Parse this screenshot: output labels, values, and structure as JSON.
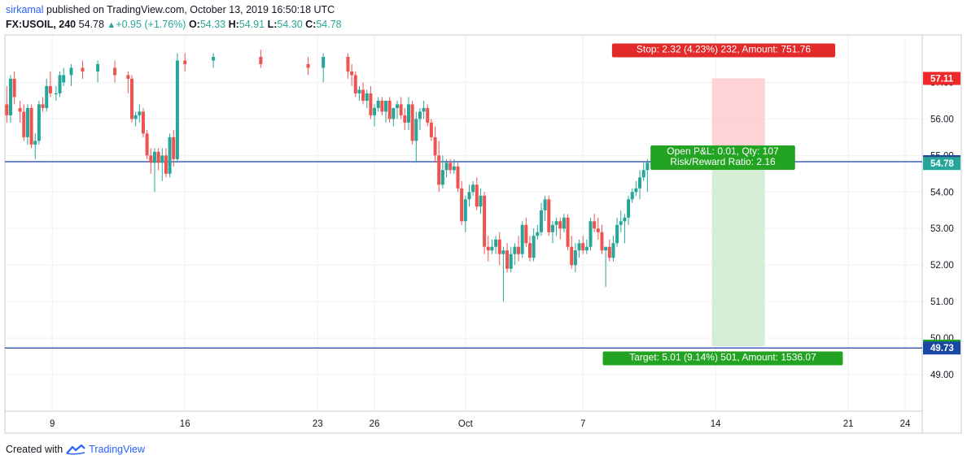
{
  "header": {
    "author": "sirkamal",
    "published_text": "published on TradingView.com, October 13, 2019 16:50:18 UTC",
    "symbol": "FX:USOIL, 240",
    "last": "54.78",
    "change": "+0.95 (+1.76%)",
    "o_label": "O:",
    "o_value": "54.33",
    "h_label": "H:",
    "h_value": "54.91",
    "l_label": "L:",
    "l_value": "54.30",
    "c_label": "C:",
    "c_value": "54.78"
  },
  "footer": {
    "created_with": "Created with",
    "brand": "TradingView"
  },
  "chart_data": {
    "type": "candlestick",
    "ylim": [
      48.0,
      58.3
    ],
    "y_ticks": [
      49,
      50,
      51,
      52,
      53,
      54,
      55,
      56,
      57
    ],
    "y_tick_labels": [
      "49.00",
      "50.00",
      "51.00",
      "52.00",
      "53.00",
      "54.00",
      "55.00",
      "56.00",
      "57.00"
    ],
    "x_ticks": [
      {
        "label": "9",
        "day": 9
      },
      {
        "label": "16",
        "day": 16
      },
      {
        "label": "23",
        "day": 23
      },
      {
        "label": "26",
        "day": 26
      },
      {
        "label": "Oct",
        "day": 30.8
      },
      {
        "label": "7",
        "day": 37
      },
      {
        "label": "14",
        "day": 44
      },
      {
        "label": "21",
        "day": 51
      },
      {
        "label": "24",
        "day": 54
      }
    ],
    "xlim": [
      6.5,
      54.9
    ],
    "horizontal_lines": [
      54.83,
      49.73
    ],
    "price_labels": [
      {
        "value": "57.11",
        "price": 57.11,
        "color": "#ef2929"
      },
      {
        "value": "54.83",
        "price": 54.83,
        "color": "#1948a3"
      },
      {
        "value": "54.79",
        "price": 54.79,
        "color": "#4a4a4a"
      },
      {
        "value": "54.78",
        "price": 54.78,
        "color": "#26a69a"
      },
      {
        "value": "49.78",
        "price": 49.78,
        "color": "#22a322"
      },
      {
        "value": "49.73",
        "price": 49.73,
        "color": "#1948a3"
      }
    ],
    "position": {
      "entry": 54.79,
      "stop": 57.11,
      "target": 49.78,
      "start_day": 43.8,
      "end_day": 46.6,
      "stop_label": "Stop: 2.32 (4.23%) 232, Amount: 751.76",
      "open_pl_label": "Open P&L: 0.01, Qty: 107",
      "rr_label": "Risk/Reward Ratio: 2.16",
      "target_label": "Target: 5.01 (9.14%) 501, Amount: 1536.07"
    },
    "candles": [
      [
        6.6,
        56.4,
        56.9,
        55.9,
        56.1
      ],
      [
        6.8,
        56.1,
        57.2,
        55.9,
        57.1
      ],
      [
        7.0,
        57.1,
        57.3,
        56.4,
        56.6
      ],
      [
        7.3,
        56.3,
        56.5,
        55.9,
        56.2
      ],
      [
        7.5,
        56.2,
        56.4,
        55.4,
        55.5
      ],
      [
        7.7,
        55.5,
        56.4,
        55.3,
        56.3
      ],
      [
        7.9,
        56.3,
        56.4,
        55.2,
        55.3
      ],
      [
        8.1,
        55.3,
        55.6,
        54.9,
        55.4
      ],
      [
        8.3,
        55.4,
        56.5,
        55.3,
        56.4
      ],
      [
        8.5,
        56.4,
        56.6,
        56.2,
        56.3
      ],
      [
        8.7,
        56.3,
        57.1,
        56.2,
        56.9
      ],
      [
        8.9,
        56.9,
        57.3,
        56.6,
        56.7
      ],
      [
        9.2,
        56.7,
        56.9,
        56.5,
        56.7
      ],
      [
        9.4,
        56.7,
        57.3,
        56.6,
        57.2
      ],
      [
        9.6,
        57.0,
        57.4,
        56.9,
        57.2
      ],
      [
        10.0,
        57.2,
        57.5,
        56.9,
        57.4
      ],
      [
        10.6,
        57.4,
        57.6,
        57.1,
        57.3
      ],
      [
        11.4,
        57.3,
        57.6,
        57.0,
        57.5
      ],
      [
        12.3,
        57.4,
        57.6,
        57.0,
        57.2
      ],
      [
        13.0,
        57.2,
        57.3,
        56.7,
        57.1
      ],
      [
        13.2,
        57.1,
        57.2,
        55.9,
        56.0
      ],
      [
        13.4,
        56.0,
        56.2,
        55.8,
        56.1
      ],
      [
        13.6,
        56.1,
        56.4,
        55.9,
        56.2
      ],
      [
        13.8,
        56.2,
        56.3,
        55.5,
        55.6
      ],
      [
        14.0,
        55.6,
        55.7,
        54.9,
        55.0
      ],
      [
        14.2,
        55.0,
        55.2,
        54.5,
        54.8
      ],
      [
        14.4,
        54.8,
        55.2,
        54.0,
        55.1
      ],
      [
        14.6,
        55.1,
        55.2,
        54.6,
        54.8
      ],
      [
        14.8,
        54.8,
        55.2,
        54.3,
        55.0
      ],
      [
        15.0,
        55.0,
        55.2,
        54.4,
        54.5
      ],
      [
        15.2,
        54.5,
        55.6,
        54.4,
        55.5
      ],
      [
        15.4,
        55.5,
        55.7,
        54.7,
        54.9
      ],
      [
        15.6,
        54.9,
        57.8,
        54.8,
        57.6
      ],
      [
        16.0,
        57.6,
        57.8,
        57.3,
        57.5
      ],
      [
        17.5,
        57.6,
        57.8,
        57.4,
        57.7
      ],
      [
        20.0,
        57.7,
        57.9,
        57.4,
        57.5
      ],
      [
        22.5,
        57.5,
        57.7,
        57.2,
        57.4
      ],
      [
        23.3,
        57.4,
        57.8,
        57.0,
        57.7
      ],
      [
        24.6,
        57.7,
        57.8,
        57.1,
        57.3
      ],
      [
        24.8,
        57.3,
        57.5,
        56.9,
        57.2
      ],
      [
        25.0,
        57.2,
        57.3,
        56.6,
        56.7
      ],
      [
        25.2,
        56.7,
        56.9,
        56.5,
        56.8
      ],
      [
        25.4,
        56.8,
        57.0,
        56.4,
        56.5
      ],
      [
        25.6,
        56.5,
        56.8,
        56.3,
        56.7
      ],
      [
        25.8,
        56.7,
        56.9,
        56.0,
        56.1
      ],
      [
        26.0,
        56.1,
        56.4,
        55.8,
        56.3
      ],
      [
        26.2,
        56.3,
        56.6,
        56.2,
        56.5
      ],
      [
        26.4,
        56.5,
        56.6,
        56.1,
        56.2
      ],
      [
        26.6,
        56.2,
        56.5,
        55.9,
        56.5
      ],
      [
        26.8,
        56.5,
        56.6,
        55.9,
        56.0
      ],
      [
        27.0,
        56.0,
        56.3,
        55.8,
        56.3
      ],
      [
        27.2,
        56.3,
        56.5,
        56.0,
        56.4
      ],
      [
        27.4,
        56.4,
        56.6,
        56.0,
        56.1
      ],
      [
        27.6,
        56.1,
        56.3,
        55.7,
        55.9
      ],
      [
        27.8,
        55.9,
        56.6,
        55.7,
        56.4
      ],
      [
        28.0,
        56.4,
        56.5,
        55.3,
        55.4
      ],
      [
        28.2,
        55.4,
        56.2,
        54.8,
        56.0
      ],
      [
        28.4,
        56.0,
        56.3,
        55.7,
        56.2
      ],
      [
        28.6,
        56.2,
        56.5,
        56.0,
        56.3
      ],
      [
        28.8,
        56.3,
        56.4,
        55.8,
        55.9
      ],
      [
        29.0,
        55.9,
        56.0,
        55.4,
        55.5
      ],
      [
        29.2,
        55.5,
        55.8,
        54.8,
        55.0
      ],
      [
        29.4,
        55.0,
        55.4,
        54.0,
        54.2
      ],
      [
        29.6,
        54.2,
        55.0,
        54.1,
        54.6
      ],
      [
        29.8,
        54.6,
        54.9,
        54.4,
        54.8
      ],
      [
        30.0,
        54.8,
        54.9,
        54.5,
        54.6
      ],
      [
        30.2,
        54.6,
        54.9,
        54.5,
        54.7
      ],
      [
        30.4,
        54.7,
        54.8,
        54.0,
        54.1
      ],
      [
        30.6,
        54.1,
        54.3,
        53.1,
        53.2
      ],
      [
        30.8,
        53.2,
        53.9,
        52.9,
        53.8
      ],
      [
        31.0,
        53.8,
        54.2,
        53.6,
        54.0
      ],
      [
        31.2,
        54.0,
        54.3,
        53.9,
        54.2
      ],
      [
        31.4,
        54.2,
        54.4,
        53.5,
        53.6
      ],
      [
        31.6,
        53.6,
        54.1,
        53.4,
        53.9
      ],
      [
        31.8,
        53.9,
        54.0,
        52.3,
        52.5
      ],
      [
        32.0,
        52.5,
        52.8,
        52.1,
        52.4
      ],
      [
        32.2,
        52.4,
        52.7,
        52.3,
        52.5
      ],
      [
        32.4,
        52.5,
        52.8,
        52.3,
        52.7
      ],
      [
        32.6,
        52.7,
        52.9,
        52.0,
        52.3
      ],
      [
        32.8,
        52.3,
        52.5,
        51.0,
        52.4
      ],
      [
        33.0,
        52.4,
        52.6,
        51.8,
        51.9
      ],
      [
        33.2,
        51.9,
        52.5,
        51.8,
        52.3
      ],
      [
        33.4,
        52.3,
        52.6,
        52.0,
        52.5
      ],
      [
        33.6,
        52.5,
        52.8,
        52.1,
        52.3
      ],
      [
        33.8,
        52.3,
        53.2,
        52.2,
        53.1
      ],
      [
        34.0,
        53.1,
        53.3,
        52.5,
        52.6
      ],
      [
        34.2,
        52.6,
        52.8,
        52.1,
        52.2
      ],
      [
        34.4,
        52.2,
        53.0,
        52.1,
        52.8
      ],
      [
        34.6,
        52.8,
        53.1,
        52.7,
        52.9
      ],
      [
        34.8,
        52.9,
        53.7,
        52.8,
        53.5
      ],
      [
        35.0,
        53.5,
        53.9,
        53.2,
        53.8
      ],
      [
        35.2,
        53.8,
        53.9,
        52.8,
        52.9
      ],
      [
        35.4,
        52.9,
        53.2,
        52.6,
        53.1
      ],
      [
        35.6,
        53.1,
        53.3,
        52.8,
        53.2
      ],
      [
        35.8,
        53.2,
        53.3,
        52.7,
        53.0
      ],
      [
        36.0,
        53.0,
        53.4,
        52.9,
        53.3
      ],
      [
        36.2,
        53.3,
        53.4,
        52.4,
        52.5
      ],
      [
        36.4,
        52.5,
        52.8,
        51.9,
        52.0
      ],
      [
        36.6,
        52.0,
        52.6,
        51.8,
        52.4
      ],
      [
        36.8,
        52.4,
        52.7,
        52.2,
        52.6
      ],
      [
        37.0,
        52.6,
        52.8,
        52.3,
        52.4
      ],
      [
        37.2,
        52.4,
        52.7,
        52.3,
        52.5
      ],
      [
        37.4,
        52.5,
        53.3,
        52.4,
        53.2
      ],
      [
        37.6,
        53.2,
        53.4,
        52.9,
        53.0
      ],
      [
        37.8,
        53.0,
        53.3,
        52.7,
        52.9
      ],
      [
        38.0,
        52.9,
        53.1,
        52.3,
        52.4
      ],
      [
        38.2,
        52.4,
        52.5,
        51.4,
        52.5
      ],
      [
        38.4,
        52.5,
        52.7,
        52.1,
        52.2
      ],
      [
        38.6,
        52.2,
        52.8,
        52.1,
        52.6
      ],
      [
        38.8,
        52.6,
        53.3,
        52.5,
        53.1
      ],
      [
        39.0,
        53.1,
        53.5,
        52.9,
        53.2
      ],
      [
        39.2,
        53.2,
        53.4,
        52.6,
        53.3
      ],
      [
        39.4,
        53.3,
        53.9,
        53.1,
        53.8
      ],
      [
        39.6,
        53.8,
        54.1,
        53.7,
        54.0
      ],
      [
        39.8,
        54.0,
        54.3,
        53.9,
        54.1
      ],
      [
        40.0,
        54.1,
        54.6,
        53.8,
        54.4
      ],
      [
        40.2,
        54.4,
        54.8,
        54.3,
        54.6
      ],
      [
        40.4,
        54.6,
        54.9,
        54.0,
        54.8
      ]
    ]
  }
}
